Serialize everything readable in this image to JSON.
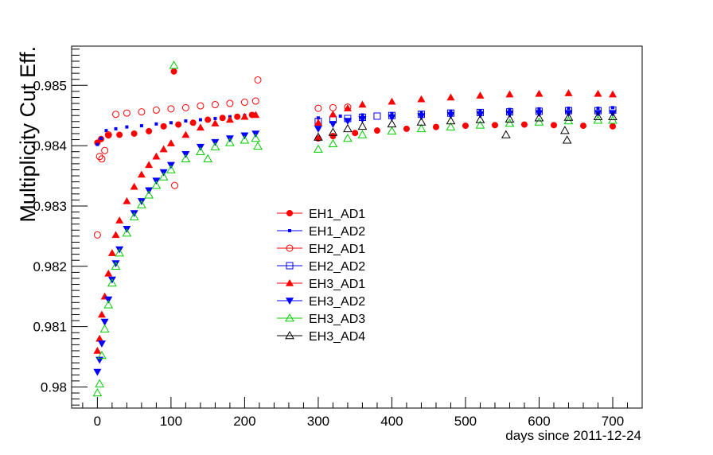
{
  "chart_data": {
    "type": "scatter",
    "title": "",
    "xlabel": "days since 2011-12-24",
    "ylabel": "Multiplicity Cut Eff.",
    "xlim": [
      -35,
      740
    ],
    "ylim": [
      0.97965,
      0.98565
    ],
    "x_ticks": [
      0,
      100,
      200,
      300,
      400,
      500,
      600,
      700
    ],
    "x_tick_labels": [
      "0",
      "100",
      "200",
      "300",
      "400",
      "500",
      "600",
      "700"
    ],
    "y_ticks": [
      0.98,
      0.981,
      0.982,
      0.983,
      0.984,
      0.985
    ],
    "y_tick_labels": [
      "0.98",
      "0.981",
      "0.982",
      "0.983",
      "0.984",
      "0.985"
    ],
    "grid": false,
    "legend_position": "center",
    "series": [
      {
        "name": "EH1_AD1",
        "color": "#ff0000",
        "marker": "filled-circle",
        "points": [
          [
            0,
            0.98405
          ],
          [
            5,
            0.98411
          ],
          [
            15,
            0.98417
          ],
          [
            30,
            0.98418
          ],
          [
            50,
            0.9842
          ],
          [
            70,
            0.98424
          ],
          [
            90,
            0.98432
          ],
          [
            104,
            0.98523
          ],
          [
            110,
            0.98435
          ],
          [
            130,
            0.98438
          ],
          [
            150,
            0.98443
          ],
          [
            170,
            0.98446
          ],
          [
            190,
            0.98448
          ],
          [
            210,
            0.98451
          ],
          [
            300,
            0.98412
          ],
          [
            320,
            0.98416
          ],
          [
            350,
            0.98421
          ],
          [
            380,
            0.98425
          ],
          [
            420,
            0.98428
          ],
          [
            460,
            0.98431
          ],
          [
            500,
            0.98433
          ],
          [
            540,
            0.98434
          ],
          [
            580,
            0.98435
          ],
          [
            620,
            0.98434
          ],
          [
            660,
            0.98433
          ],
          [
            700,
            0.98432
          ]
        ]
      },
      {
        "name": "EH1_AD2",
        "color": "#0000ff",
        "marker": "small-dot",
        "points": [
          [
            0,
            0.98402
          ],
          [
            5,
            0.98412
          ],
          [
            12,
            0.98425
          ],
          [
            25,
            0.98428
          ],
          [
            40,
            0.98431
          ],
          [
            60,
            0.98433
          ],
          [
            80,
            0.98436
          ],
          [
            100,
            0.98438
          ],
          [
            120,
            0.98441
          ],
          [
            140,
            0.98443
          ],
          [
            160,
            0.98445
          ],
          [
            180,
            0.98448
          ],
          [
            200,
            0.9845
          ],
          [
            215,
            0.98452
          ],
          [
            300,
            0.98446
          ],
          [
            330,
            0.98449
          ],
          [
            360,
            0.98451
          ],
          [
            400,
            0.98453
          ],
          [
            440,
            0.98455
          ],
          [
            480,
            0.98457
          ],
          [
            520,
            0.98458
          ],
          [
            560,
            0.9846
          ],
          [
            600,
            0.98461
          ],
          [
            640,
            0.98462
          ],
          [
            680,
            0.98462
          ],
          [
            700,
            0.98463
          ]
        ]
      },
      {
        "name": "EH2_AD1",
        "color": "#ff0000",
        "marker": "open-circle",
        "points": [
          [
            0,
            0.98252
          ],
          [
            3,
            0.98382
          ],
          [
            6,
            0.98378
          ],
          [
            10,
            0.98392
          ],
          [
            15,
            0.98418
          ],
          [
            25,
            0.98452
          ],
          [
            40,
            0.98454
          ],
          [
            60,
            0.98456
          ],
          [
            80,
            0.98459
          ],
          [
            100,
            0.98461
          ],
          [
            105,
            0.98334
          ],
          [
            120,
            0.98463
          ],
          [
            140,
            0.98466
          ],
          [
            160,
            0.98468
          ],
          [
            180,
            0.9847
          ],
          [
            200,
            0.98472
          ],
          [
            215,
            0.98474
          ],
          [
            218,
            0.98509
          ],
          [
            300,
            0.98462
          ],
          [
            320,
            0.98463
          ],
          [
            340,
            0.98464
          ]
        ]
      },
      {
        "name": "EH2_AD2",
        "color": "#0000ff",
        "marker": "open-square",
        "points": [
          [
            300,
            0.9844
          ],
          [
            320,
            0.98443
          ],
          [
            340,
            0.98445
          ],
          [
            360,
            0.98447
          ],
          [
            380,
            0.98449
          ],
          [
            400,
            0.9845
          ],
          [
            440,
            0.98452
          ],
          [
            480,
            0.98454
          ],
          [
            520,
            0.98455
          ],
          [
            560,
            0.98456
          ],
          [
            600,
            0.98457
          ],
          [
            640,
            0.98458
          ],
          [
            680,
            0.98458
          ],
          [
            700,
            0.98459
          ]
        ]
      },
      {
        "name": "EH3_AD1",
        "color": "#ff0000",
        "marker": "filled-triangle-up",
        "points": [
          [
            0,
            0.9806
          ],
          [
            3,
            0.9808
          ],
          [
            6,
            0.9812
          ],
          [
            10,
            0.9815
          ],
          [
            15,
            0.98188
          ],
          [
            20,
            0.98222
          ],
          [
            25,
            0.98252
          ],
          [
            30,
            0.98276
          ],
          [
            40,
            0.98308
          ],
          [
            50,
            0.98332
          ],
          [
            60,
            0.98352
          ],
          [
            70,
            0.98368
          ],
          [
            80,
            0.98382
          ],
          [
            90,
            0.98394
          ],
          [
            100,
            0.98404
          ],
          [
            120,
            0.98418
          ],
          [
            140,
            0.9843
          ],
          [
            160,
            0.98437
          ],
          [
            180,
            0.98443
          ],
          [
            200,
            0.98448
          ],
          [
            215,
            0.98451
          ],
          [
            300,
            0.98438
          ],
          [
            320,
            0.98452
          ],
          [
            340,
            0.98462
          ],
          [
            360,
            0.98468
          ],
          [
            400,
            0.98473
          ],
          [
            440,
            0.98477
          ],
          [
            480,
            0.9848
          ],
          [
            520,
            0.98483
          ],
          [
            560,
            0.98485
          ],
          [
            600,
            0.98486
          ],
          [
            640,
            0.98487
          ],
          [
            680,
            0.98486
          ],
          [
            700,
            0.98485
          ]
        ]
      },
      {
        "name": "EH3_AD2",
        "color": "#0000ff",
        "marker": "filled-triangle-down",
        "points": [
          [
            0,
            0.98025
          ],
          [
            3,
            0.98045
          ],
          [
            6,
            0.98072
          ],
          [
            10,
            0.98108
          ],
          [
            15,
            0.98145
          ],
          [
            20,
            0.98178
          ],
          [
            25,
            0.98205
          ],
          [
            30,
            0.98228
          ],
          [
            40,
            0.98262
          ],
          [
            50,
            0.98288
          ],
          [
            60,
            0.98308
          ],
          [
            70,
            0.98326
          ],
          [
            80,
            0.98342
          ],
          [
            90,
            0.98356
          ],
          [
            100,
            0.98368
          ],
          [
            120,
            0.98386
          ],
          [
            140,
            0.98398
          ],
          [
            160,
            0.98406
          ],
          [
            180,
            0.98412
          ],
          [
            200,
            0.98417
          ],
          [
            215,
            0.9842
          ],
          [
            300,
            0.98428
          ],
          [
            320,
            0.98436
          ],
          [
            340,
            0.98441
          ],
          [
            360,
            0.98444
          ],
          [
            400,
            0.98447
          ],
          [
            440,
            0.98449
          ],
          [
            480,
            0.98451
          ],
          [
            520,
            0.98452
          ],
          [
            560,
            0.98453
          ],
          [
            600,
            0.98454
          ],
          [
            640,
            0.98454
          ],
          [
            680,
            0.98454
          ],
          [
            700,
            0.98454
          ]
        ]
      },
      {
        "name": "EH3_AD3",
        "color": "#00cc00",
        "marker": "open-triangle-up",
        "points": [
          [
            0,
            0.9799
          ],
          [
            3,
            0.98005
          ],
          [
            6,
            0.98052
          ],
          [
            10,
            0.98096
          ],
          [
            15,
            0.98136
          ],
          [
            20,
            0.98172
          ],
          [
            25,
            0.982
          ],
          [
            30,
            0.98222
          ],
          [
            40,
            0.98255
          ],
          [
            50,
            0.98282
          ],
          [
            60,
            0.98302
          ],
          [
            70,
            0.98318
          ],
          [
            80,
            0.98334
          ],
          [
            90,
            0.98348
          ],
          [
            100,
            0.9836
          ],
          [
            104,
            0.98533
          ],
          [
            120,
            0.98378
          ],
          [
            140,
            0.9839
          ],
          [
            150,
            0.98378
          ],
          [
            160,
            0.98398
          ],
          [
            180,
            0.98405
          ],
          [
            200,
            0.98409
          ],
          [
            215,
            0.98412
          ],
          [
            218,
            0.98399
          ],
          [
            300,
            0.98394
          ],
          [
            320,
            0.98403
          ],
          [
            340,
            0.98412
          ],
          [
            360,
            0.98418
          ],
          [
            400,
            0.98424
          ],
          [
            440,
            0.98428
          ],
          [
            480,
            0.98431
          ],
          [
            520,
            0.98434
          ],
          [
            560,
            0.98437
          ],
          [
            600,
            0.98439
          ],
          [
            640,
            0.98441
          ],
          [
            680,
            0.98442
          ],
          [
            700,
            0.98442
          ]
        ]
      },
      {
        "name": "EH3_AD4",
        "color": "#000000",
        "marker": "open-triangle-up",
        "points": [
          [
            300,
            0.98414
          ],
          [
            320,
            0.98422
          ],
          [
            340,
            0.98428
          ],
          [
            360,
            0.98432
          ],
          [
            400,
            0.98436
          ],
          [
            440,
            0.98439
          ],
          [
            480,
            0.98441
          ],
          [
            520,
            0.98443
          ],
          [
            555,
            0.98418
          ],
          [
            560,
            0.98444
          ],
          [
            600,
            0.98446
          ],
          [
            635,
            0.98425
          ],
          [
            638,
            0.98409
          ],
          [
            640,
            0.98447
          ],
          [
            680,
            0.98448
          ],
          [
            700,
            0.98448
          ]
        ]
      }
    ]
  }
}
